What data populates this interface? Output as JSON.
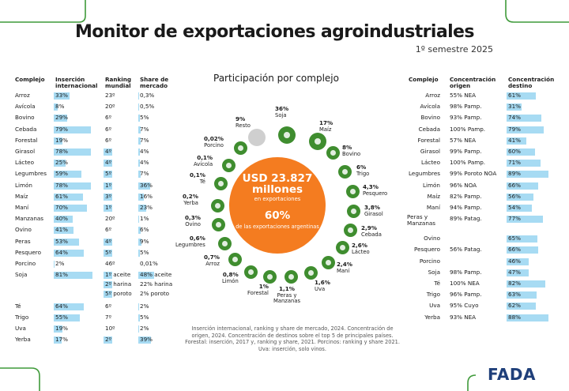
{
  "title": "Monitor de exportaciones agroindustriales",
  "subtitle": "1º semestre 2025",
  "left_table": {
    "headers": [
      "Complejo",
      "Inserción internacional",
      "Ranking mundial",
      "Share de mercado"
    ],
    "rows": [
      {
        "complejo": "Arroz",
        "insercion": "33%",
        "insercion_pct": 33,
        "ranking": [
          "23º"
        ],
        "ranking_hl": false,
        "share": [
          "0,3%"
        ],
        "share_pct": 0.3
      },
      {
        "complejo": "Avícola",
        "insercion": "8%",
        "insercion_pct": 8,
        "ranking": [
          "20º"
        ],
        "ranking_hl": false,
        "share": [
          "0,5%"
        ],
        "share_pct": 0.5
      },
      {
        "complejo": "Bovino",
        "insercion": "29%",
        "insercion_pct": 29,
        "ranking": [
          "6º"
        ],
        "ranking_hl": false,
        "share": [
          "5%"
        ],
        "share_pct": 5
      },
      {
        "complejo": "Cebada",
        "insercion": "79%",
        "insercion_pct": 79,
        "ranking": [
          "6º"
        ],
        "ranking_hl": false,
        "share": [
          "7%"
        ],
        "share_pct": 7
      },
      {
        "complejo": "Forestal",
        "insercion": "19%",
        "insercion_pct": 19,
        "ranking": [
          "6º"
        ],
        "ranking_hl": false,
        "share": [
          "7%"
        ],
        "share_pct": 7
      },
      {
        "complejo": "Girasol",
        "insercion": "78%",
        "insercion_pct": 78,
        "ranking": [
          "4º"
        ],
        "ranking_hl": true,
        "share": [
          "4%"
        ],
        "share_pct": 4
      },
      {
        "complejo": "Lácteo",
        "insercion": "25%",
        "insercion_pct": 25,
        "ranking": [
          "4º"
        ],
        "ranking_hl": true,
        "share": [
          "4%"
        ],
        "share_pct": 4
      },
      {
        "complejo": "Legumbres",
        "insercion": "59%",
        "insercion_pct": 59,
        "ranking": [
          "5º"
        ],
        "ranking_hl": true,
        "share": [
          "7%"
        ],
        "share_pct": 7
      },
      {
        "complejo": "Limón",
        "insercion": "78%",
        "insercion_pct": 78,
        "ranking": [
          "1º"
        ],
        "ranking_hl": true,
        "share": [
          "36%"
        ],
        "share_pct": 36
      },
      {
        "complejo": "Maíz",
        "insercion": "61%",
        "insercion_pct": 61,
        "ranking": [
          "3º"
        ],
        "ranking_hl": true,
        "share": [
          "16%"
        ],
        "share_pct": 16
      },
      {
        "complejo": "Maní",
        "insercion": "70%",
        "insercion_pct": 70,
        "ranking": [
          "1º"
        ],
        "ranking_hl": true,
        "share": [
          "23%"
        ],
        "share_pct": 23
      },
      {
        "complejo": "Manzanas",
        "insercion": "40%",
        "insercion_pct": 40,
        "ranking": [
          "20º"
        ],
        "ranking_hl": false,
        "share": [
          "1%"
        ],
        "share_pct": 1
      },
      {
        "complejo": "Ovino",
        "insercion": "41%",
        "insercion_pct": 41,
        "ranking": [
          "6º"
        ],
        "ranking_hl": false,
        "share": [
          "6%"
        ],
        "share_pct": 6
      },
      {
        "complejo": "Peras",
        "insercion": "53%",
        "insercion_pct": 53,
        "ranking": [
          "4º"
        ],
        "ranking_hl": true,
        "share": [
          "9%"
        ],
        "share_pct": 9
      },
      {
        "complejo": "Pesquero",
        "insercion": "64%",
        "insercion_pct": 64,
        "ranking": [
          "5º"
        ],
        "ranking_hl": true,
        "share": [
          "5%"
        ],
        "share_pct": 5
      },
      {
        "complejo": "Porcino",
        "insercion": "2%",
        "insercion_pct": 2,
        "ranking": [
          "46º"
        ],
        "ranking_hl": false,
        "share": [
          "0,01%"
        ],
        "share_pct": 0.01
      },
      {
        "complejo": "Soja",
        "insercion": "81%",
        "insercion_pct": 81,
        "ranking": [
          "1º aceite",
          "2º harina",
          "5º poroto"
        ],
        "ranking_hl": true,
        "share": [
          "48% aceite",
          "22% harina",
          "2% poroto"
        ],
        "share_pct": 48,
        "share_hl_lines": 1
      },
      {
        "complejo": "Té",
        "insercion": "64%",
        "insercion_pct": 64,
        "ranking": [
          "6º"
        ],
        "ranking_hl": false,
        "share": [
          "2%"
        ],
        "share_pct": 2
      },
      {
        "complejo": "Trigo",
        "insercion": "55%",
        "insercion_pct": 55,
        "ranking": [
          "7º"
        ],
        "ranking_hl": false,
        "share": [
          "5%"
        ],
        "share_pct": 5
      },
      {
        "complejo": "Uva",
        "insercion": "19%",
        "insercion_pct": 19,
        "ranking": [
          "10º"
        ],
        "ranking_hl": false,
        "share": [
          "2%"
        ],
        "share_pct": 2
      },
      {
        "complejo": "Yerba",
        "insercion": "17%",
        "insercion_pct": 17,
        "ranking": [
          "2º"
        ],
        "ranking_hl": true,
        "share": [
          "39%"
        ],
        "share_pct": 39
      }
    ]
  },
  "participacion": {
    "title": "Participación por complejo",
    "total": "USD 23.827 millones",
    "total_sub": "en exportaciones",
    "share": "60%",
    "share_sub": "de las exportaciones argentinas",
    "segments": [
      {
        "name": "Soja",
        "value": "36%"
      },
      {
        "name": "Maíz",
        "value": "17%"
      },
      {
        "name": "Bovino",
        "value": "8%"
      },
      {
        "name": "Trigo",
        "value": "6%"
      },
      {
        "name": "Pesquero",
        "value": "4,3%"
      },
      {
        "name": "Girasol",
        "value": "3,8%"
      },
      {
        "name": "Cebada",
        "value": "2,9%"
      },
      {
        "name": "Lácteo",
        "value": "2,6%"
      },
      {
        "name": "Maní",
        "value": "2,4%"
      },
      {
        "name": "Uva",
        "value": "1,6%"
      },
      {
        "name": "Peras y Manzanas",
        "value": "1,1%"
      },
      {
        "name": "Forestal",
        "value": "1%"
      },
      {
        "name": "Limón",
        "value": "0,8%"
      },
      {
        "name": "Arroz",
        "value": "0,7%"
      },
      {
        "name": "Legumbres",
        "value": "0,6%"
      },
      {
        "name": "Ovino",
        "value": "0,3%"
      },
      {
        "name": "Yerba",
        "value": "0,2%"
      },
      {
        "name": "Té",
        "value": "0,1%"
      },
      {
        "name": "Avícola",
        "value": "0,1%"
      },
      {
        "name": "Porcino",
        "value": "0,02%"
      },
      {
        "name": "Resto",
        "value": "9%"
      }
    ]
  },
  "right_table": {
    "headers": [
      "Complejo",
      "Concentración origen",
      "Concentración destino"
    ],
    "rows": [
      {
        "complejo": "Arroz",
        "origen": "55% NEA",
        "destino": "61%",
        "destino_pct": 61
      },
      {
        "complejo": "Avícola",
        "origen": "98% Pamp.",
        "destino": "31%",
        "destino_pct": 31
      },
      {
        "complejo": "Bovino",
        "origen": "93% Pamp.",
        "destino": "74%",
        "destino_pct": 74
      },
      {
        "complejo": "Cebada",
        "origen": "100% Pamp.",
        "destino": "79%",
        "destino_pct": 79
      },
      {
        "complejo": "Forestal",
        "origen": "57% NEA",
        "destino": "41%",
        "destino_pct": 41
      },
      {
        "complejo": "Girasol",
        "origen": "99% Pamp.",
        "destino": "60%",
        "destino_pct": 60
      },
      {
        "complejo": "Lácteo",
        "origen": "100% Pamp.",
        "destino": "71%",
        "destino_pct": 71
      },
      {
        "complejo": "Legumbres",
        "origen": "99% Poroto NOA",
        "destino": "89%",
        "destino_pct": 89
      },
      {
        "complejo": "Limón",
        "origen": "96% NOA",
        "destino": "66%",
        "destino_pct": 66
      },
      {
        "complejo": "Maíz",
        "origen": "82% Pamp.",
        "destino": "56%",
        "destino_pct": 56
      },
      {
        "complejo": "Maní",
        "origen": "94% Pamp.",
        "destino": "54%",
        "destino_pct": 54
      },
      {
        "complejo": "Peras y Manzanas",
        "origen": "89% Patag.",
        "destino": "77%",
        "destino_pct": 77
      },
      {
        "complejo": "Ovino",
        "origen": "",
        "destino": "65%",
        "destino_pct": 65
      },
      {
        "complejo": "Pesquero",
        "origen": "56% Patag.",
        "destino": "66%",
        "destino_pct": 66
      },
      {
        "complejo": "Porcino",
        "origen": "",
        "destino": "46%",
        "destino_pct": 46
      },
      {
        "complejo": "Soja",
        "origen": "98% Pamp.",
        "destino": "47%",
        "destino_pct": 47
      },
      {
        "complejo": "Té",
        "origen": "100% NEA",
        "destino": "82%",
        "destino_pct": 82
      },
      {
        "complejo": "Trigo",
        "origen": "96% Pamp.",
        "destino": "63%",
        "destino_pct": 63
      },
      {
        "complejo": "Uva",
        "origen": "95% Cuyo",
        "destino": "62%",
        "destino_pct": 62
      },
      {
        "complejo": "Yerba",
        "origen": "93% NEA",
        "destino": "88%",
        "destino_pct": 88
      }
    ]
  },
  "footnote": "Inserción internacional, ranking y share de mercado, 2024. Concentración de origen, 2024. Concentración de destinos sobre el top 5 de principales países. Forestal: inserción, 2017 y, ranking y share, 2021. Porcinos: ranking y share 2021. Uva: inserción, solo vinos.",
  "logo_text": "FADA",
  "colors": {
    "bar": "#a7dbf3",
    "accent_orange": "#f47c20",
    "icon_green": "#3f8d2f",
    "frame_green": "#3f9a3a",
    "logo": "#1f3f7a"
  }
}
